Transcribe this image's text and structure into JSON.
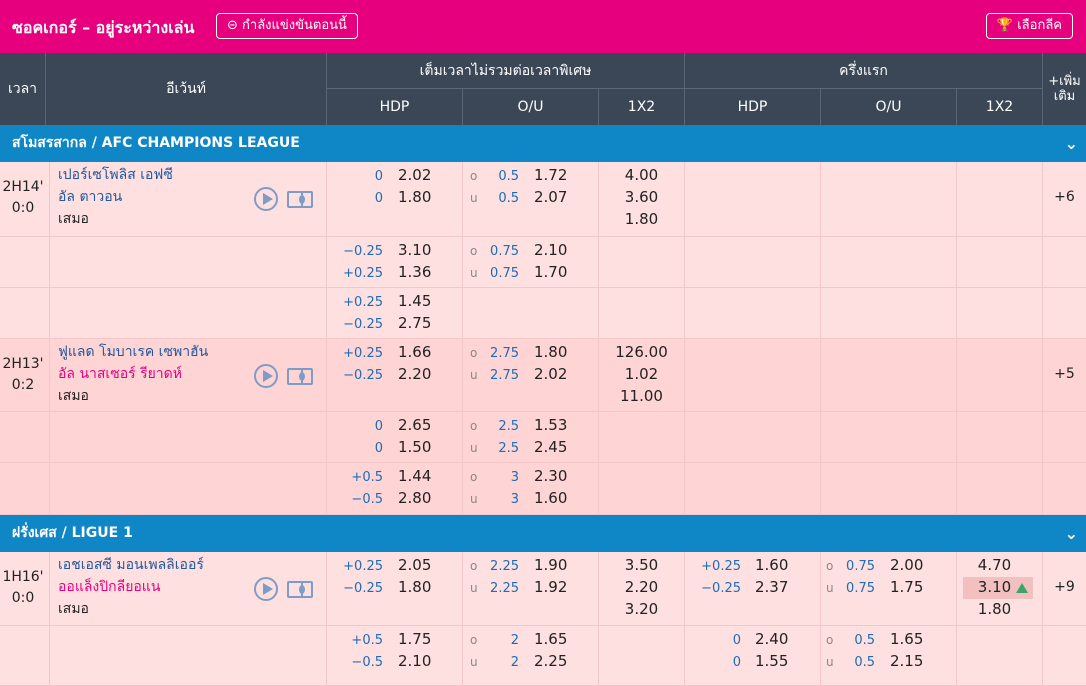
{
  "header": {
    "title": "ซอคเกอร์ – อยู่ระหว่างเล่น",
    "live_label": "กำลังแข่งขันตอนนี้",
    "live_icon": "link-icon",
    "league_select": "เลือกลีค",
    "league_icon": "trophy-icon"
  },
  "columns": {
    "time": "เวลา",
    "event": "อีเว้นท์",
    "fulltime": "เต็มเวลาไม่รวมต่อเวลาพิเศษ",
    "firsthalf": "ครึ่งแรก",
    "hdp": "HDP",
    "ou": "O/U",
    "x12": "1X2",
    "hdp2": "HDP",
    "ou2": "O/U",
    "x122": "1X2",
    "more": "+เพิ่มเติม"
  },
  "leagues": [
    "สโมสรสากล / AFC CHAMPIONS LEAGUE",
    "ฝรั่งเศส / LIGUE 1"
  ],
  "matches": [
    {
      "time": "2H14'",
      "score": "0:0",
      "home": "เปอร์เซโพลิส เอฟซี",
      "away": "อัล ตาวอน",
      "draw": "เสมอ",
      "more": "+6",
      "lines": [
        {
          "h1": "0",
          "o1": "2.02",
          "h2": "0",
          "o2": "1.80",
          "u1": "0.5",
          "uo1": "1.72",
          "u2": "0.5",
          "uo2": "2.07",
          "x": [
            "4.00",
            "3.60",
            "1.80"
          ]
        },
        {
          "h1": "-0.25",
          "o1": "3.10",
          "h2": "+0.25",
          "o2": "1.36",
          "u1": "0.75",
          "uo1": "2.10",
          "u2": "0.75",
          "uo2": "1.70"
        },
        {
          "h1": "+0.25",
          "o1": "1.45",
          "h2": "-0.25",
          "o2": "2.75"
        }
      ]
    },
    {
      "time": "2H13'",
      "score": "0:2",
      "home": "ฟูแลด โมบาเรค เซพาฮัน",
      "away": "อัล นาสเซอร์ รียาดห์",
      "draw": "เสมอ",
      "more": "+5",
      "lines": [
        {
          "h1": "+0.25",
          "o1": "1.66",
          "h2": "-0.25",
          "o2": "2.20",
          "u1": "2.75",
          "uo1": "1.80",
          "u2": "2.75",
          "uo2": "2.02",
          "x": [
            "126.00",
            "1.02",
            "11.00"
          ]
        },
        {
          "h1": "0",
          "o1": "2.65",
          "h2": "0",
          "o2": "1.50",
          "u1": "2.5",
          "uo1": "1.53",
          "u2": "2.5",
          "uo2": "2.45"
        },
        {
          "h1": "+0.5",
          "o1": "1.44",
          "h2": "-0.5",
          "o2": "2.80",
          "u1": "3",
          "uo1": "2.30",
          "u2": "3",
          "uo2": "1.60"
        }
      ]
    },
    {
      "time": "1H16'",
      "score": "0:0",
      "home": "เอชเอสซี มอนเพลลิเออร์",
      "away": "ออแล็งปิกลียอแน",
      "draw": "เสมอ",
      "more": "+9",
      "lines": [
        {
          "h1": "+0.25",
          "o1": "2.05",
          "h2": "-0.25",
          "o2": "1.80",
          "u1": "2.25",
          "uo1": "1.90",
          "u2": "2.25",
          "uo2": "1.92",
          "x": [
            "3.50",
            "2.20",
            "3.20"
          ],
          "fh1": "+0.25",
          "fo1": "1.60",
          "fh2": "-0.25",
          "fo2": "2.37",
          "fu1": "0.75",
          "fuo1": "2.00",
          "fu2": "0.75",
          "fuo2": "1.75",
          "fx": [
            "4.70",
            "3.10",
            "1.80"
          ]
        },
        {
          "h1": "+0.5",
          "o1": "1.75",
          "h2": "-0.5",
          "o2": "2.10",
          "u1": "2",
          "uo1": "1.65",
          "u2": "2",
          "uo2": "2.25",
          "fh1": "0",
          "fo1": "2.40",
          "fh2": "0",
          "fo2": "1.55",
          "fu1": "0.5",
          "fuo1": "1.65",
          "fu2": "0.5",
          "fuo2": "2.15"
        }
      ]
    }
  ],
  "ou_labels": {
    "over": "o",
    "under": "u"
  },
  "colors": {
    "brand": "#e6007e",
    "league_bar": "#0f87c6",
    "header": "#3b4656",
    "row_bg": "#ffe3e3"
  }
}
